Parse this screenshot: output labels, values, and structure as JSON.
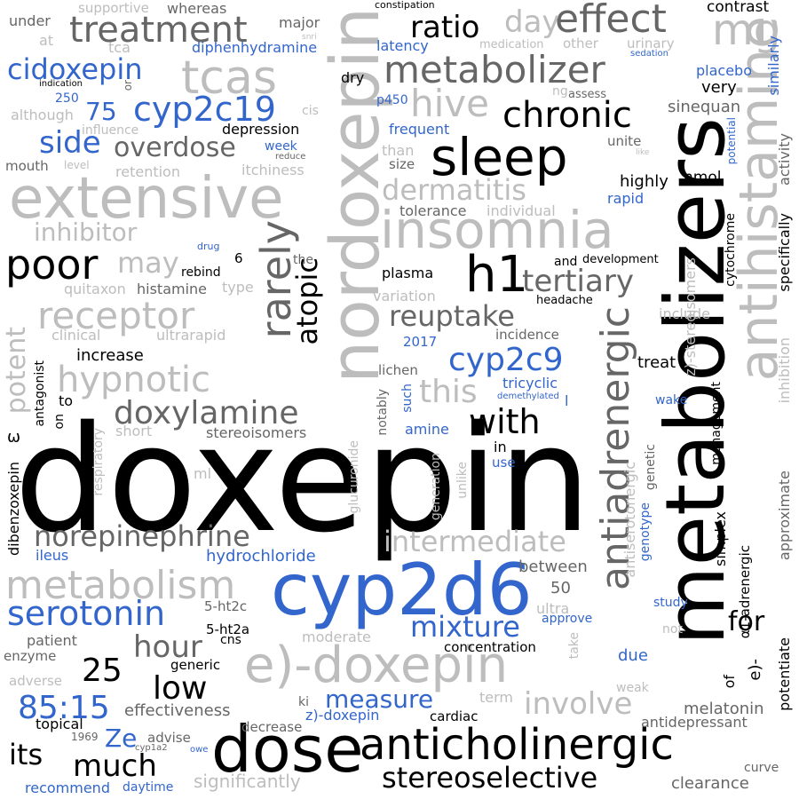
{
  "words": [
    {
      "text": "doxepin",
      "color": "#000000"
    },
    {
      "text": "metabolizers",
      "color": "#000000"
    },
    {
      "text": "nordoxepin",
      "color": "#bdbdbd"
    },
    {
      "text": "antihistamine",
      "color": "#bdbdbd"
    },
    {
      "text": "cyp2d6",
      "color": "#3366cc"
    },
    {
      "text": "e)-doxepin",
      "color": "#bdbdbd"
    },
    {
      "text": "dose",
      "color": "#000000"
    },
    {
      "text": "anticholinergic",
      "color": "#000000"
    },
    {
      "text": "extensive",
      "color": "#bdbdbd"
    },
    {
      "text": "insomnia",
      "color": "#bdbdbd"
    },
    {
      "text": "metabolizer",
      "color": "#666666"
    },
    {
      "text": "sleep",
      "color": "#000000"
    },
    {
      "text": "treatment",
      "color": "#666666"
    },
    {
      "text": "tcas",
      "color": "#bdbdbd"
    },
    {
      "text": "effect",
      "color": "#666666"
    },
    {
      "text": "mg",
      "color": "#bdbdbd"
    },
    {
      "text": "day",
      "color": "#bdbdbd"
    },
    {
      "text": "ratio",
      "color": "#000000"
    },
    {
      "text": "hive",
      "color": "#bdbdbd"
    },
    {
      "text": "chronic",
      "color": "#000000"
    },
    {
      "text": "cidoxepin",
      "color": "#3366cc"
    },
    {
      "text": "cyp2c19",
      "color": "#3366cc"
    },
    {
      "text": "side",
      "color": "#3366cc"
    },
    {
      "text": "overdose",
      "color": "#666666"
    },
    {
      "text": "h1",
      "color": "#000000"
    },
    {
      "text": "poor",
      "color": "#000000"
    },
    {
      "text": "may",
      "color": "#bdbdbd"
    },
    {
      "text": "receptor",
      "color": "#bdbdbd"
    },
    {
      "text": "rarely",
      "color": "#666666"
    },
    {
      "text": "atopic",
      "color": "#000000"
    },
    {
      "text": "reuptake",
      "color": "#666666"
    },
    {
      "text": "tertiary",
      "color": "#666666"
    },
    {
      "text": "dermatitis",
      "color": "#bdbdbd"
    },
    {
      "text": "hypnotic",
      "color": "#bdbdbd"
    },
    {
      "text": "inhibitor",
      "color": "#bdbdbd"
    },
    {
      "text": "doxylamine",
      "color": "#666666"
    },
    {
      "text": "cyp2c9",
      "color": "#3366cc"
    },
    {
      "text": "with",
      "color": "#000000"
    },
    {
      "text": "this",
      "color": "#bdbdbd"
    },
    {
      "text": "antiadrenergic",
      "color": "#666666"
    },
    {
      "text": "norepinephrine",
      "color": "#666666"
    },
    {
      "text": "metabolism",
      "color": "#bdbdbd"
    },
    {
      "text": "intermediate",
      "color": "#bdbdbd"
    },
    {
      "text": "serotonin",
      "color": "#3366cc"
    },
    {
      "text": "mixture",
      "color": "#3366cc"
    },
    {
      "text": "hour",
      "color": "#666666"
    },
    {
      "text": "25",
      "color": "#000000"
    },
    {
      "text": "low",
      "color": "#000000"
    },
    {
      "text": "85:15",
      "color": "#3366cc"
    },
    {
      "text": "measure",
      "color": "#3366cc"
    },
    {
      "text": "involve",
      "color": "#bdbdbd"
    },
    {
      "text": "much",
      "color": "#000000"
    },
    {
      "text": "its",
      "color": "#000000"
    },
    {
      "text": "stereoselective",
      "color": "#000000"
    },
    {
      "text": "for",
      "color": "#000000"
    },
    {
      "text": "potent",
      "color": "#bdbdbd"
    },
    {
      "text": "Ze",
      "color": "#3366cc"
    },
    {
      "text": "75",
      "color": "#3366cc"
    },
    {
      "text": "very",
      "color": "#000000"
    },
    {
      "text": "sinequan",
      "color": "#666666"
    },
    {
      "text": "placebo",
      "color": "#3366cc"
    },
    {
      "text": "similarly",
      "color": "#3366cc"
    },
    {
      "text": "contrast",
      "color": "#000000"
    },
    {
      "text": "highly",
      "color": "#000000"
    },
    {
      "text": "nmol",
      "color": "#000000"
    },
    {
      "text": "rapid",
      "color": "#3366cc"
    },
    {
      "text": "specifically",
      "color": "#000000"
    },
    {
      "text": "activity",
      "color": "#666666"
    },
    {
      "text": "cytochrome",
      "color": "#000000"
    },
    {
      "text": "inhibition",
      "color": "#bdbdbd"
    },
    {
      "text": "z)-stereoisomers",
      "color": "#bdbdbd"
    },
    {
      "text": "antiserotonergic",
      "color": "#bdbdbd"
    },
    {
      "text": "management",
      "color": "#000000"
    },
    {
      "text": "approximate",
      "color": "#666666"
    },
    {
      "text": "potentiate",
      "color": "#000000"
    },
    {
      "text": "genetic",
      "color": "#666666"
    },
    {
      "text": "genotype",
      "color": "#3366cc"
    },
    {
      "text": "simplex",
      "color": "#000000"
    },
    {
      "text": "α1-adrenergic",
      "color": "#000000"
    },
    {
      "text": "melatonin",
      "color": "#666666"
    },
    {
      "text": "antidepressant",
      "color": "#666666"
    },
    {
      "text": "clearance",
      "color": "#666666"
    },
    {
      "text": "curve",
      "color": "#666666"
    },
    {
      "text": "of",
      "color": "#000000"
    },
    {
      "text": "e)-",
      "color": "#000000"
    },
    {
      "text": "study",
      "color": "#3366cc"
    },
    {
      "text": "not",
      "color": "#bdbdbd"
    },
    {
      "text": "weak",
      "color": "#bdbdbd"
    },
    {
      "text": "due",
      "color": "#3366cc"
    },
    {
      "text": "ultra",
      "color": "#bdbdbd"
    },
    {
      "text": "approve",
      "color": "#3366cc"
    },
    {
      "text": "take",
      "color": "#bdbdbd"
    },
    {
      "text": "50",
      "color": "#666666"
    },
    {
      "text": "between",
      "color": "#666666"
    },
    {
      "text": "concentration",
      "color": "#000000"
    },
    {
      "text": "moderate",
      "color": "#bdbdbd"
    },
    {
      "text": "term",
      "color": "#bdbdbd"
    },
    {
      "text": "cardiac",
      "color": "#000000"
    },
    {
      "text": "z)-doxepin",
      "color": "#3366cc"
    },
    {
      "text": "ki",
      "color": "#666666"
    },
    {
      "text": "decrease",
      "color": "#666666"
    },
    {
      "text": "significantly",
      "color": "#bdbdbd"
    },
    {
      "text": "daytime",
      "color": "#3366cc"
    },
    {
      "text": "recommend",
      "color": "#3366cc"
    },
    {
      "text": "owe",
      "color": "#3366cc"
    },
    {
      "text": "advise",
      "color": "#666666"
    },
    {
      "text": "effectiveness",
      "color": "#666666"
    },
    {
      "text": "topical",
      "color": "#000000"
    },
    {
      "text": "1969",
      "color": "#666666"
    },
    {
      "text": "cyp1a2",
      "color": "#666666"
    },
    {
      "text": "adverse",
      "color": "#bdbdbd"
    },
    {
      "text": "enzyme",
      "color": "#666666"
    },
    {
      "text": "patient",
      "color": "#666666"
    },
    {
      "text": "generic",
      "color": "#000000"
    },
    {
      "text": "cns",
      "color": "#000000"
    },
    {
      "text": "5-ht2a",
      "color": "#000000"
    },
    {
      "text": "5-ht2c",
      "color": "#666666"
    },
    {
      "text": "ileus",
      "color": "#3366cc"
    },
    {
      "text": "hydrochloride",
      "color": "#3366cc"
    },
    {
      "text": "dibenzoxepin",
      "color": "#000000"
    },
    {
      "text": "respiratory",
      "color": "#bdbdbd"
    },
    {
      "text": "ml",
      "color": "#bdbdbd"
    },
    {
      "text": "glucuronide",
      "color": "#bdbdbd"
    },
    {
      "text": "generation",
      "color": "#bdbdbd"
    },
    {
      "text": "unlike",
      "color": "#bdbdbd"
    },
    {
      "text": "use",
      "color": "#3366cc"
    },
    {
      "text": "in",
      "color": "#000000"
    },
    {
      "text": "stereoisomers",
      "color": "#666666"
    },
    {
      "text": "short",
      "color": "#bdbdbd"
    },
    {
      "text": "antagonist",
      "color": "#000000"
    },
    {
      "text": "on",
      "color": "#000000"
    },
    {
      "text": "to",
      "color": "#000000"
    },
    {
      "text": "ω",
      "color": "#000000"
    },
    {
      "text": "increase",
      "color": "#000000"
    },
    {
      "text": "clinical",
      "color": "#bdbdbd"
    },
    {
      "text": "ultrarapid",
      "color": "#bdbdbd"
    },
    {
      "text": "quitaxon",
      "color": "#bdbdbd"
    },
    {
      "text": "histamine",
      "color": "#666666"
    },
    {
      "text": "type",
      "color": "#bdbdbd"
    },
    {
      "text": "rebind",
      "color": "#000000"
    },
    {
      "text": "6",
      "color": "#000000"
    },
    {
      "text": "drug",
      "color": "#3366cc"
    },
    {
      "text": "the",
      "color": "#666666"
    },
    {
      "text": "plasma",
      "color": "#000000"
    },
    {
      "text": "variation",
      "color": "#bdbdbd"
    },
    {
      "text": "2017",
      "color": "#3366cc"
    },
    {
      "text": "incidence",
      "color": "#666666"
    },
    {
      "text": "headache",
      "color": "#000000"
    },
    {
      "text": "include",
      "color": "#bdbdbd"
    },
    {
      "text": "development",
      "color": "#000000"
    },
    {
      "text": "and",
      "color": "#000000"
    },
    {
      "text": "lichen",
      "color": "#666666"
    },
    {
      "text": "such",
      "color": "#3366cc"
    },
    {
      "text": "notably",
      "color": "#666666"
    },
    {
      "text": "tricyclic",
      "color": "#3366cc"
    },
    {
      "text": "demethylated",
      "color": "#3366cc"
    },
    {
      "text": "l",
      "color": "#3366cc"
    },
    {
      "text": "amine",
      "color": "#3366cc"
    },
    {
      "text": "treat",
      "color": "#000000"
    },
    {
      "text": "wake",
      "color": "#3366cc"
    },
    {
      "text": "tolerance",
      "color": "#666666"
    },
    {
      "text": "individual",
      "color": "#bdbdbd"
    },
    {
      "text": "size",
      "color": "#666666"
    },
    {
      "text": "than",
      "color": "#bdbdbd"
    },
    {
      "text": "frequent",
      "color": "#3366cc"
    },
    {
      "text": "p450",
      "color": "#3366cc"
    },
    {
      "text": "dry",
      "color": "#000000"
    },
    {
      "text": "depression",
      "color": "#000000"
    },
    {
      "text": "week",
      "color": "#3366cc"
    },
    {
      "text": "reduce",
      "color": "#666666"
    },
    {
      "text": "itchiness",
      "color": "#bdbdbd"
    },
    {
      "text": "retention",
      "color": "#bdbdbd"
    },
    {
      "text": "mouth",
      "color": "#666666"
    },
    {
      "text": "level",
      "color": "#bdbdbd"
    },
    {
      "text": "influence",
      "color": "#bdbdbd"
    },
    {
      "text": "although",
      "color": "#bdbdbd"
    },
    {
      "text": "cis",
      "color": "#bdbdbd"
    },
    {
      "text": "250",
      "color": "#3366cc"
    },
    {
      "text": "indication",
      "color": "#000000"
    },
    {
      "text": "or",
      "color": "#666666"
    },
    {
      "text": "at",
      "color": "#bdbdbd"
    },
    {
      "text": "tca",
      "color": "#bdbdbd"
    },
    {
      "text": "under",
      "color": "#666666"
    },
    {
      "text": "supportive",
      "color": "#bdbdbd"
    },
    {
      "text": "whereas",
      "color": "#666666"
    },
    {
      "text": "major",
      "color": "#666666"
    },
    {
      "text": "snri",
      "color": "#bdbdbd"
    },
    {
      "text": "diphenhydramine",
      "color": "#3366cc"
    },
    {
      "text": "constipation",
      "color": "#000000"
    },
    {
      "text": "latency",
      "color": "#3366cc"
    },
    {
      "text": "medication",
      "color": "#bdbdbd"
    },
    {
      "text": "other",
      "color": "#bdbdbd"
    },
    {
      "text": "urinary",
      "color": "#bdbdbd"
    },
    {
      "text": "sedation",
      "color": "#3366cc"
    },
    {
      "text": "ng",
      "color": "#bdbdbd"
    },
    {
      "text": "assess",
      "color": "#666666"
    },
    {
      "text": "unite",
      "color": "#666666"
    },
    {
      "text": "like",
      "color": "#bdbdbd"
    },
    {
      "text": "potential",
      "color": "#3366cc"
    }
  ]
}
